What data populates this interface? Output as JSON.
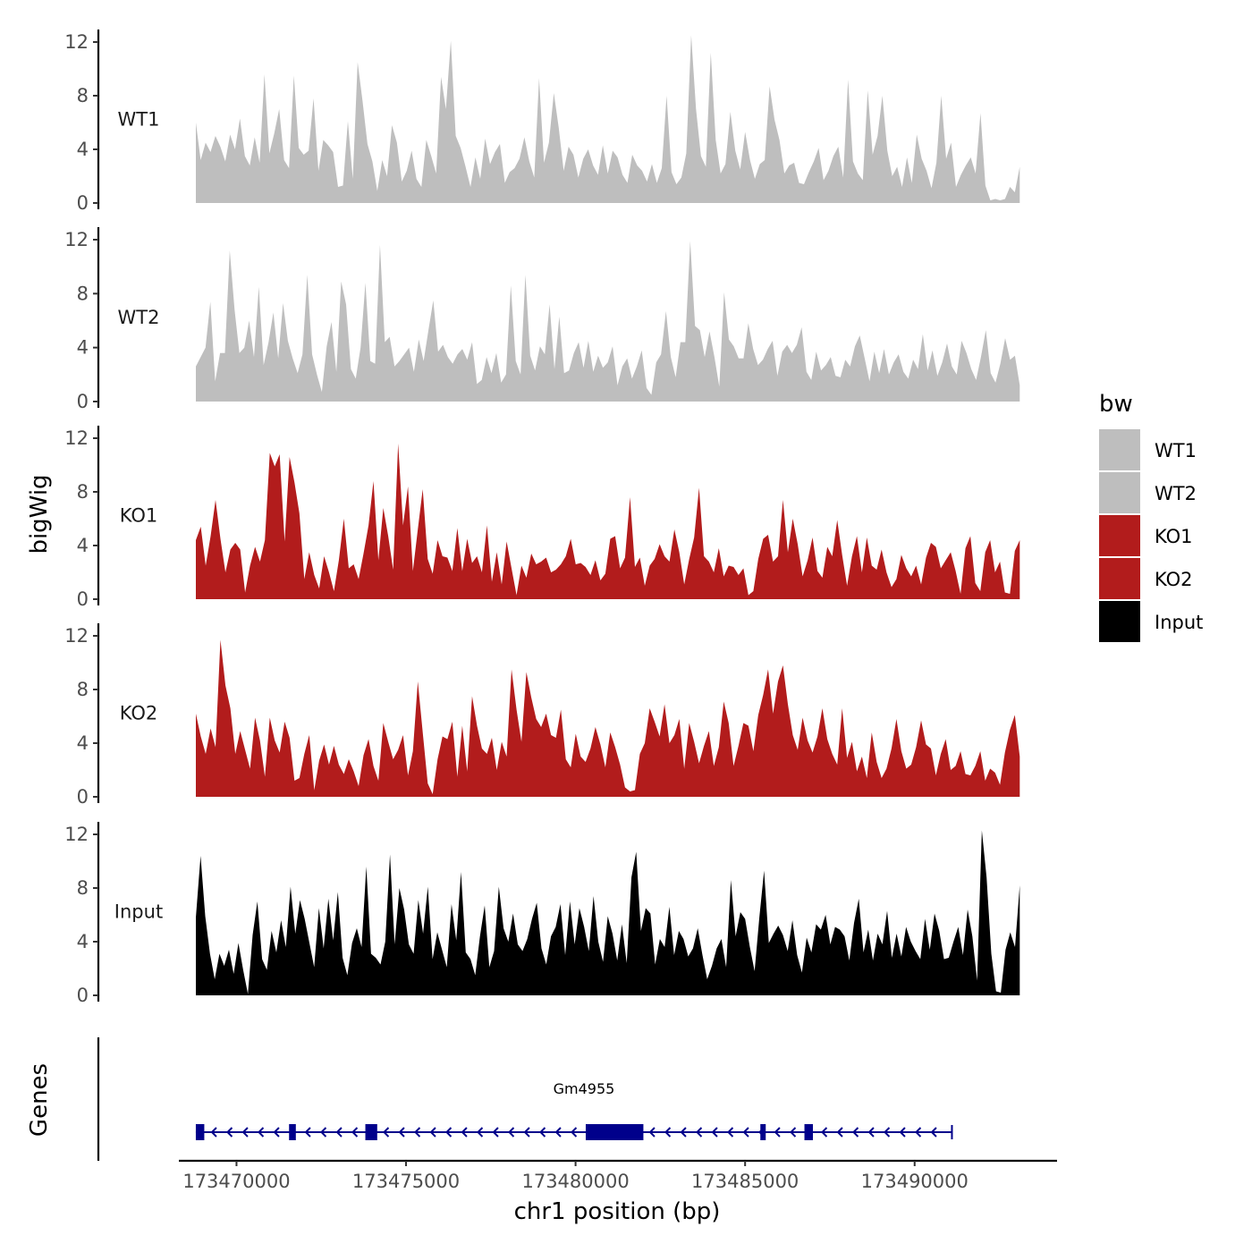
{
  "chart_data": {
    "type": "area",
    "chromosome": "chr1",
    "xlabel": "chr1 position (bp)",
    "ylabel": "bigWig",
    "genes_ylabel": "Genes",
    "xlim": [
      173468300,
      173494200
    ],
    "x_range_data": [
      173468800,
      173493100
    ],
    "ylim": [
      0,
      12.5
    ],
    "y_ticks": [
      0,
      4,
      8,
      12
    ],
    "x_ticks": [
      173470000,
      173475000,
      173480000,
      173485000,
      173490000
    ],
    "x_tick_labels": [
      "173470000",
      "173475000",
      "173480000",
      "173485000",
      "173490000"
    ],
    "legend": {
      "title": "bw",
      "entries": [
        {
          "label": "WT1",
          "color": "#bebebe"
        },
        {
          "label": "WT2",
          "color": "#bebebe"
        },
        {
          "label": "KO1",
          "color": "#b21c1c"
        },
        {
          "label": "KO2",
          "color": "#b21c1c"
        },
        {
          "label": "Input",
          "color": "#000000"
        }
      ]
    },
    "series": [
      {
        "name": "WT1",
        "color": "#bebebe",
        "values": [
          6.0,
          3.2,
          4.5,
          3.8,
          5.0,
          4.2,
          3.1,
          5.1,
          4.0,
          6.3,
          3.5,
          2.8,
          4.9,
          3.0,
          9.6,
          3.7,
          5.2,
          7.0,
          3.2,
          2.6,
          9.5,
          4.1,
          3.6,
          3.9,
          7.8,
          2.4,
          4.7,
          4.3,
          3.8,
          1.2,
          1.3,
          6.1,
          1.8,
          10.5,
          7.6,
          4.4,
          3.1,
          0.9,
          3.2,
          2.0,
          5.8,
          4.5,
          1.6,
          2.4,
          3.9,
          1.8,
          1.2,
          4.7,
          3.5,
          2.2,
          9.4,
          7.0,
          12.1,
          5.0,
          4.1,
          2.7,
          1.2,
          3.4,
          1.8,
          4.8,
          2.9,
          3.8,
          4.4,
          1.5,
          2.3,
          2.6,
          3.3,
          4.9,
          3.1,
          1.9,
          9.3,
          3.0,
          4.5,
          8.2,
          5.6,
          2.4,
          4.2,
          3.6,
          1.9,
          3.3,
          4.0,
          2.8,
          2.1,
          4.3,
          2.2,
          3.9,
          3.4,
          2.1,
          1.5,
          3.6,
          2.8,
          2.4,
          1.6,
          2.9,
          1.5,
          2.6,
          8.0,
          2.3,
          1.4,
          1.9,
          3.7,
          12.5,
          7.0,
          3.5,
          2.7,
          11.2,
          4.7,
          2.2,
          2.9,
          6.8,
          3.9,
          2.5,
          5.3,
          3.2,
          1.8,
          2.9,
          3.2,
          8.7,
          6.2,
          4.7,
          2.2,
          2.8,
          3.0,
          1.5,
          1.4,
          2.3,
          3.1,
          4.1,
          1.7,
          2.4,
          3.5,
          4.2,
          1.9,
          9.2,
          3.1,
          2.2,
          1.7,
          8.4,
          3.6,
          5.0,
          8.0,
          3.9,
          2.0,
          2.7,
          1.2,
          3.4,
          1.5,
          5.1,
          3.3,
          2.4,
          1.1,
          3.0,
          8.0,
          3.3,
          4.5,
          1.2,
          2.1,
          2.8,
          3.4,
          2.2,
          6.7,
          1.3,
          0.2,
          0.3,
          0.2,
          0.3,
          1.2,
          0.8,
          2.7
        ]
      },
      {
        "name": "WT2",
        "color": "#bebebe",
        "values": [
          2.6,
          3.3,
          4.0,
          7.4,
          1.5,
          3.6,
          3.6,
          11.2,
          6.8,
          3.6,
          4.0,
          6.0,
          3.3,
          8.5,
          2.7,
          4.4,
          6.6,
          3.2,
          7.3,
          4.5,
          3.2,
          2.1,
          3.5,
          9.4,
          3.5,
          2.0,
          0.7,
          4.1,
          5.9,
          2.2,
          8.9,
          7.2,
          2.4,
          1.7,
          4.0,
          8.8,
          3.0,
          2.8,
          11.6,
          4.4,
          4.8,
          2.6,
          3.0,
          3.5,
          4.0,
          2.2,
          4.6,
          3.0,
          5.3,
          7.5,
          3.7,
          4.2,
          3.3,
          2.8,
          3.5,
          3.9,
          3.1,
          4.4,
          1.3,
          1.6,
          3.3,
          2.1,
          3.6,
          1.4,
          2.0,
          8.6,
          3.0,
          2.0,
          9.4,
          3.4,
          2.3,
          4.1,
          3.5,
          7.2,
          2.4,
          6.3,
          2.1,
          2.3,
          3.6,
          4.4,
          2.5,
          4.5,
          2.2,
          3.4,
          2.5,
          2.9,
          4.1,
          1.2,
          2.6,
          3.2,
          1.7,
          2.6,
          3.8,
          1.0,
          0.5,
          2.9,
          3.5,
          6.7,
          3.3,
          1.8,
          4.4,
          4.4,
          11.9,
          5.6,
          5.3,
          3.3,
          5.2,
          3.3,
          1.1,
          8.1,
          4.6,
          4.1,
          3.2,
          3.2,
          5.8,
          3.9,
          2.7,
          3.1,
          3.9,
          4.5,
          1.9,
          3.7,
          4.2,
          3.6,
          4.2,
          5.5,
          2.2,
          1.6,
          3.7,
          2.3,
          2.7,
          3.3,
          1.9,
          1.8,
          3.1,
          2.6,
          4.1,
          4.9,
          3.2,
          1.5,
          3.7,
          2.1,
          3.9,
          2.0,
          2.9,
          3.5,
          2.2,
          1.7,
          3.1,
          2.4,
          5.0,
          2.3,
          3.8,
          1.9,
          2.9,
          4.3,
          2.6,
          2.0,
          4.5,
          3.6,
          2.4,
          1.6,
          3.3,
          5.3,
          2.1,
          1.4,
          2.8,
          4.7,
          3.1,
          3.4,
          1.2
        ]
      },
      {
        "name": "KO1",
        "color": "#b21c1c",
        "values": [
          4.4,
          5.4,
          2.5,
          4.7,
          7.4,
          4.5,
          2.0,
          3.7,
          4.2,
          3.7,
          0.5,
          2.5,
          3.9,
          2.8,
          4.4,
          10.9,
          9.9,
          10.8,
          4.3,
          10.6,
          8.7,
          6.4,
          1.5,
          3.5,
          1.8,
          0.8,
          3.2,
          2.0,
          0.6,
          2.9,
          6.0,
          2.3,
          2.6,
          1.5,
          3.4,
          5.5,
          8.8,
          2.9,
          6.8,
          4.7,
          2.2,
          11.6,
          5.5,
          8.4,
          2.1,
          5.2,
          8.2,
          3.0,
          1.9,
          4.4,
          3.2,
          3.1,
          2.1,
          5.3,
          2.1,
          4.5,
          2.7,
          3.2,
          2.0,
          5.5,
          1.3,
          3.5,
          1.1,
          4.3,
          2.3,
          0.3,
          2.5,
          1.6,
          3.4,
          2.6,
          2.8,
          3.1,
          2.0,
          2.2,
          2.6,
          3.2,
          4.5,
          2.6,
          2.7,
          2.4,
          1.8,
          2.9,
          1.4,
          1.9,
          4.5,
          4.7,
          2.3,
          3.1,
          7.6,
          2.4,
          3.1,
          1.0,
          2.5,
          3.0,
          4.1,
          3.2,
          2.8,
          5.2,
          3.5,
          1.1,
          3.0,
          4.6,
          8.3,
          3.2,
          2.8,
          2.0,
          3.8,
          1.7,
          2.5,
          2.4,
          1.8,
          2.3,
          0.3,
          0.6,
          3.0,
          4.5,
          4.8,
          2.8,
          3.2,
          7.4,
          3.5,
          6.0,
          4.1,
          1.7,
          2.9,
          4.6,
          2.1,
          1.6,
          3.9,
          3.2,
          5.9,
          3.3,
          1.0,
          3.2,
          4.7,
          2.0,
          4.6,
          2.5,
          2.2,
          3.7,
          2.0,
          0.9,
          1.5,
          3.3,
          2.3,
          1.7,
          2.5,
          1.1,
          3.1,
          4.2,
          3.9,
          2.3,
          2.9,
          3.5,
          2.1,
          0.4,
          3.8,
          4.7,
          1.2,
          0.6,
          3.5,
          4.4,
          2.0,
          2.8,
          0.5,
          0.4,
          3.6,
          4.4
        ]
      },
      {
        "name": "KO2",
        "color": "#b21c1c",
        "values": [
          6.2,
          4.5,
          3.2,
          5.1,
          3.7,
          11.7,
          8.3,
          6.6,
          3.2,
          4.9,
          3.5,
          2.1,
          5.9,
          4.2,
          1.5,
          5.9,
          4.2,
          3.3,
          5.6,
          4.4,
          1.2,
          1.4,
          3.2,
          4.6,
          0.5,
          2.7,
          3.9,
          2.4,
          3.8,
          2.4,
          1.7,
          2.8,
          1.9,
          0.8,
          3.1,
          4.3,
          2.3,
          1.2,
          5.5,
          4.1,
          2.8,
          3.5,
          4.6,
          1.6,
          3.4,
          8.6,
          4.8,
          1.0,
          0.2,
          2.8,
          4.5,
          4.3,
          5.6,
          1.5,
          5.3,
          1.9,
          7.5,
          5.3,
          3.6,
          3.2,
          4.4,
          2.0,
          4.1,
          3.0,
          9.5,
          6.5,
          4.1,
          9.3,
          7.4,
          5.8,
          5.2,
          6.2,
          4.6,
          4.4,
          6.5,
          2.8,
          2.2,
          4.7,
          3.0,
          2.6,
          3.6,
          5.2,
          3.9,
          2.2,
          4.8,
          3.7,
          2.4,
          0.7,
          0.4,
          0.5,
          3.2,
          4.0,
          6.6,
          5.6,
          4.5,
          6.9,
          4.0,
          4.6,
          5.8,
          2.1,
          5.5,
          4.1,
          2.5,
          3.8,
          4.9,
          2.3,
          3.7,
          7.1,
          5.5,
          2.3,
          3.8,
          5.5,
          5.3,
          3.4,
          6.1,
          7.6,
          9.5,
          6.2,
          8.6,
          9.8,
          6.9,
          4.6,
          3.5,
          5.9,
          4.2,
          3.3,
          4.5,
          6.6,
          4.3,
          3.2,
          2.4,
          6.6,
          2.9,
          4.1,
          1.9,
          3.0,
          1.4,
          4.8,
          2.6,
          1.4,
          2.1,
          3.6,
          5.8,
          3.4,
          2.1,
          2.4,
          3.7,
          5.7,
          3.9,
          3.6,
          1.6,
          3.2,
          4.3,
          2.0,
          2.3,
          3.4,
          1.7,
          1.6,
          2.3,
          3.4,
          1.2,
          2.1,
          1.8,
          0.9,
          3.3,
          5.0,
          6.1,
          3.0
        ]
      },
      {
        "name": "Input",
        "color": "#000000",
        "values": [
          5.8,
          10.4,
          5.9,
          3.1,
          1.2,
          3.1,
          2.2,
          3.4,
          1.6,
          3.9,
          1.9,
          0.1,
          4.5,
          7.0,
          2.7,
          1.9,
          4.8,
          3.2,
          5.6,
          3.6,
          8.1,
          4.6,
          7.1,
          5.7,
          3.9,
          2.1,
          6.5,
          3.5,
          7.2,
          4.1,
          7.7,
          2.8,
          1.5,
          3.9,
          5.0,
          3.6,
          9.6,
          3.1,
          2.8,
          2.3,
          4.0,
          10.5,
          3.8,
          8.0,
          6.4,
          3.8,
          3.1,
          7.1,
          4.6,
          8.1,
          2.7,
          4.7,
          3.4,
          2.1,
          6.8,
          4.1,
          9.2,
          3.2,
          2.7,
          1.5,
          4.4,
          6.7,
          2.1,
          3.3,
          8.1,
          5.0,
          4.0,
          6.1,
          3.8,
          3.3,
          4.2,
          5.7,
          6.9,
          3.5,
          2.3,
          4.4,
          5.1,
          6.8,
          3.0,
          7.0,
          3.8,
          6.5,
          5.1,
          3.3,
          7.4,
          4.0,
          2.5,
          5.9,
          4.6,
          2.6,
          5.3,
          2.4,
          8.8,
          10.7,
          4.8,
          6.5,
          6.1,
          2.3,
          4.2,
          3.6,
          6.6,
          3.0,
          4.8,
          4.2,
          2.9,
          3.5,
          5.0,
          3.0,
          1.2,
          2.2,
          3.5,
          4.2,
          2.1,
          8.6,
          4.4,
          6.2,
          5.7,
          3.6,
          1.8,
          5.8,
          9.3,
          3.9,
          4.6,
          5.2,
          4.5,
          3.3,
          5.6,
          3.0,
          1.7,
          4.3,
          3.2,
          5.3,
          4.9,
          6.0,
          3.8,
          5.1,
          4.9,
          4.4,
          2.6,
          5.4,
          7.2,
          3.2,
          4.9,
          2.6,
          4.6,
          3.8,
          6.3,
          2.8,
          4.6,
          2.9,
          5.1,
          4.0,
          3.3,
          2.7,
          5.7,
          3.4,
          6.1,
          4.8,
          2.7,
          2.8,
          4.0,
          5.1,
          3.0,
          6.4,
          4.4,
          1.1,
          12.3,
          8.8,
          3.1,
          0.3,
          0.2,
          3.4,
          4.7,
          3.6,
          8.2
        ]
      }
    ],
    "genes": {
      "name": "Gm4955",
      "strand": "-",
      "start": 173468800,
      "end": 173491100,
      "exons": [
        {
          "start": 173468800,
          "end": 173469050
        },
        {
          "start": 173471550,
          "end": 173471750
        },
        {
          "start": 173473800,
          "end": 173474150
        },
        {
          "start": 173480300,
          "end": 173482000
        },
        {
          "start": 173485450,
          "end": 173485550
        },
        {
          "start": 173486750,
          "end": 173487000
        }
      ]
    }
  }
}
